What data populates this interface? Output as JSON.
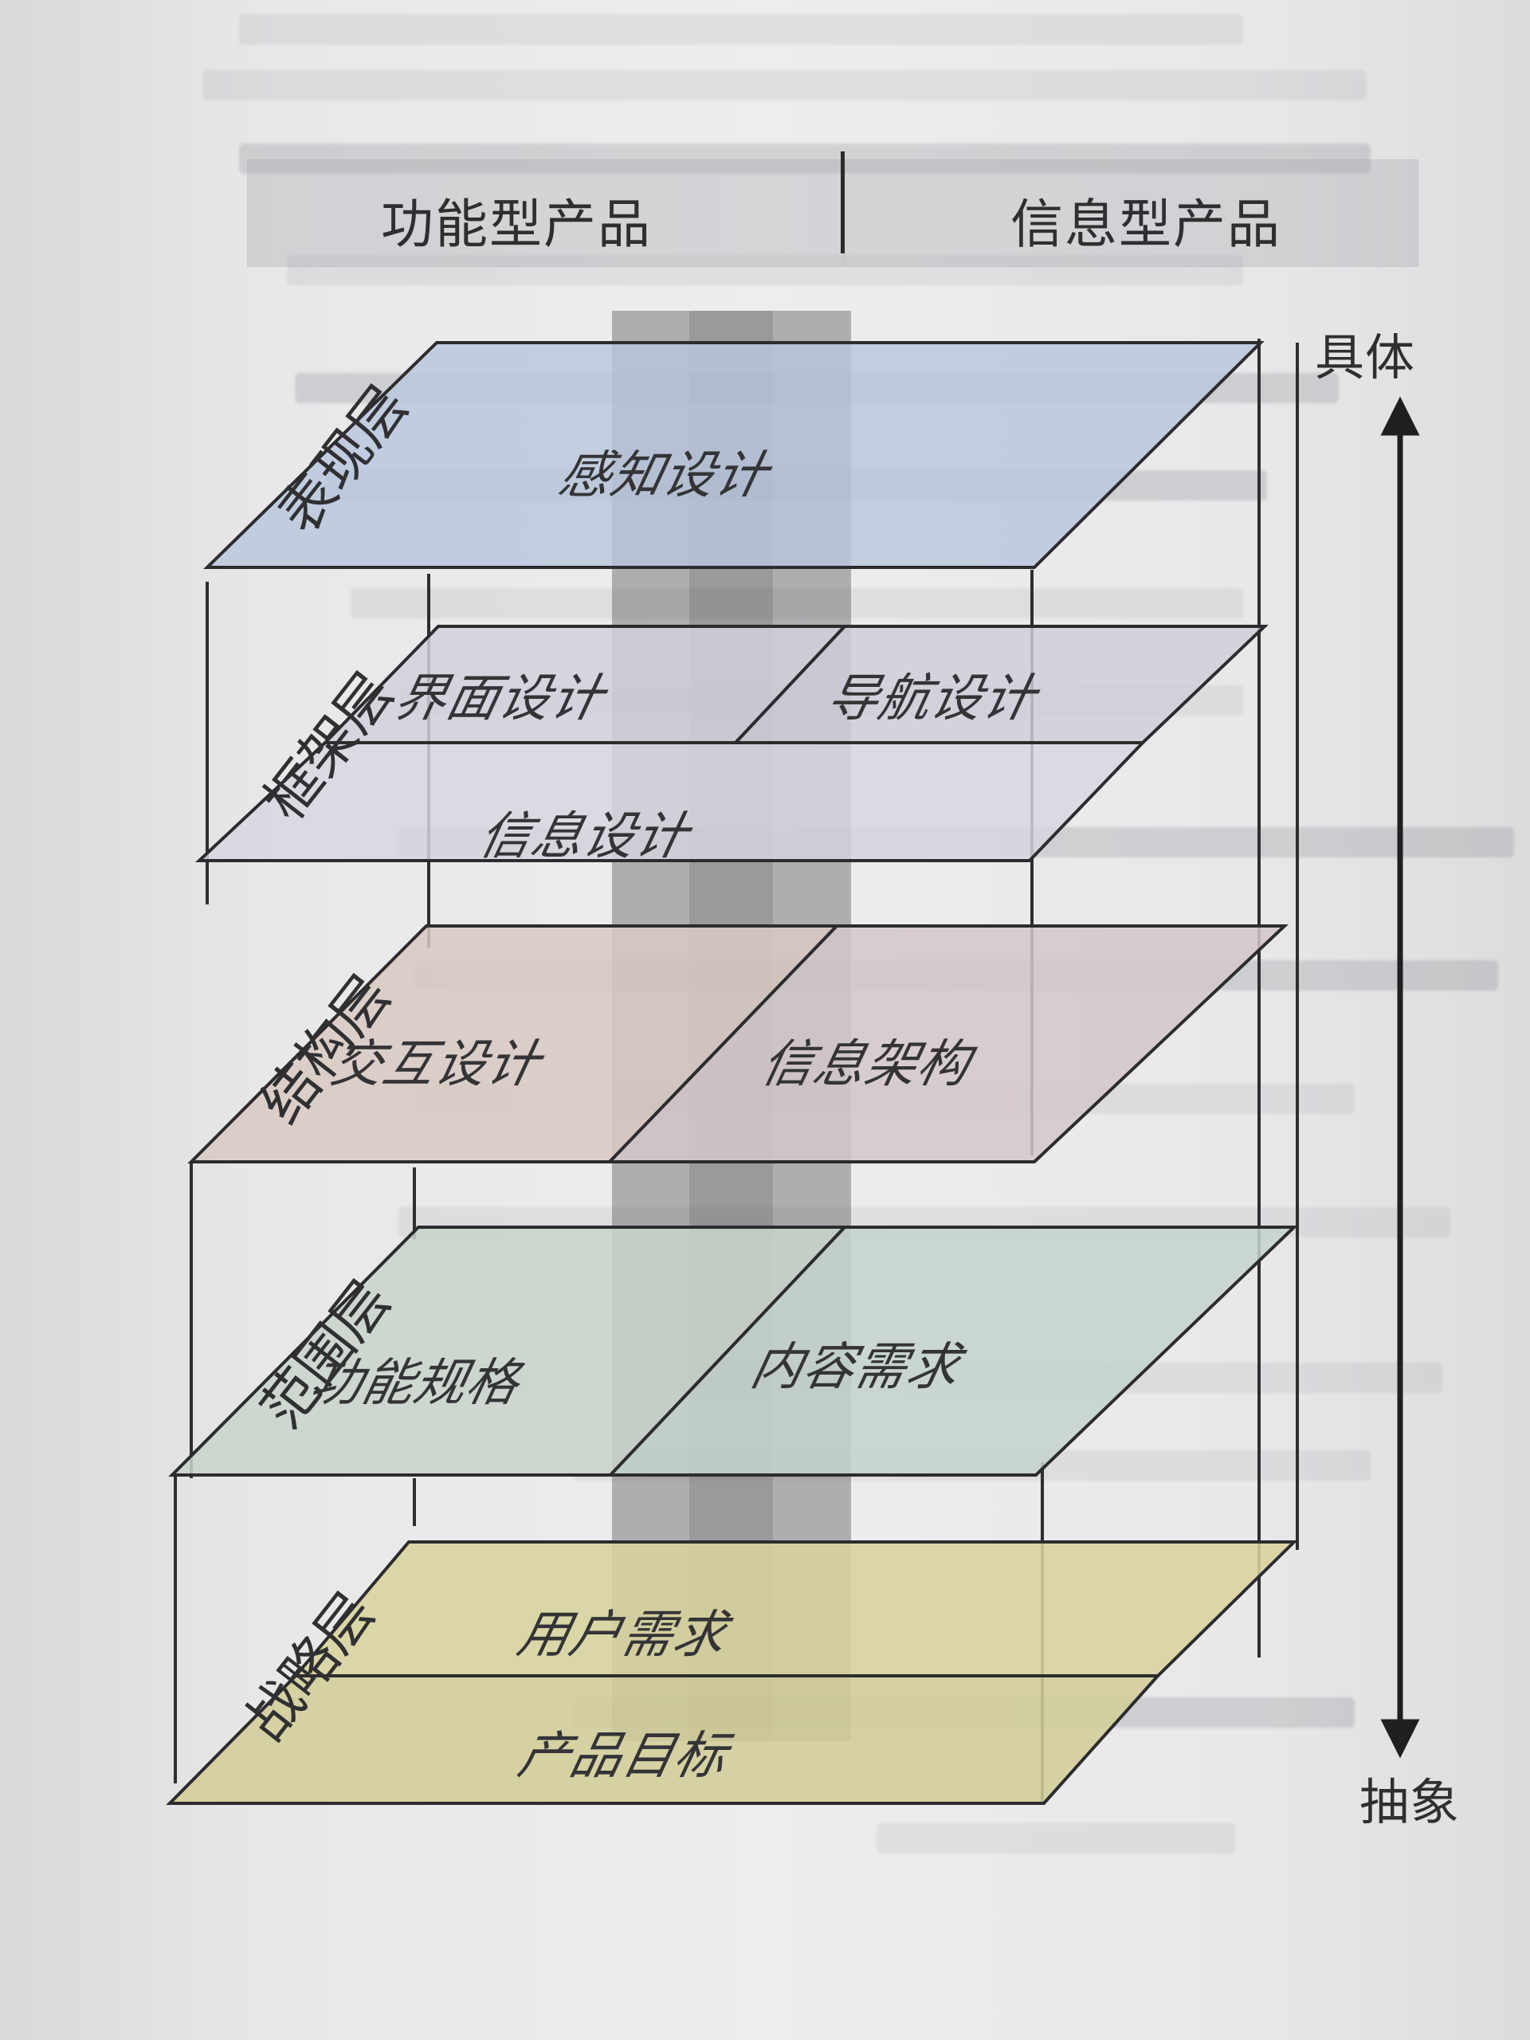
{
  "diagram": {
    "columns": {
      "left": "功能型产品",
      "right": "信息型产品"
    },
    "axis": {
      "top": "具体",
      "bottom": "抽象"
    },
    "layers": [
      {
        "name": "表现层",
        "items": [
          "感知设计"
        ]
      },
      {
        "name": "框架层",
        "items": [
          "界面设计",
          "导航设计",
          "信息设计"
        ]
      },
      {
        "name": "结构层",
        "items": [
          "交互设计",
          "信息架构"
        ]
      },
      {
        "name": "范围层",
        "items": [
          "功能规格",
          "内容需求"
        ]
      },
      {
        "name": "战略层",
        "items": [
          "用户需求",
          "产品目标"
        ]
      }
    ]
  }
}
